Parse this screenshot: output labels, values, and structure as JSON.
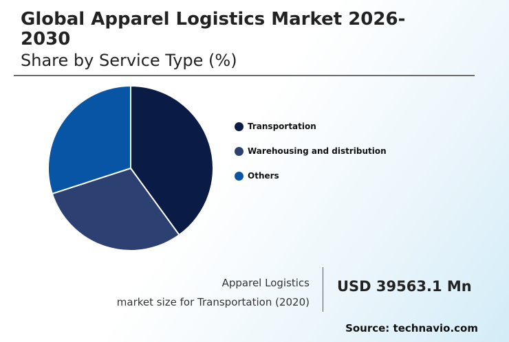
{
  "header": {
    "title": "Global Apparel Logistics Market 2026-2030",
    "subtitle": "Share by Service Type (%)"
  },
  "chart_data": {
    "type": "pie",
    "slices": [
      {
        "label": "Transportation",
        "value": 40,
        "color": "#0a1c45"
      },
      {
        "label": "Warehousing and distribution",
        "value": 30,
        "color": "#2c4172"
      },
      {
        "label": "Others",
        "value": 30,
        "color": "#0955a5"
      }
    ],
    "legend_position": "right"
  },
  "kpi": {
    "label_line1": "Apparel Logistics",
    "label_line2": "market size for Transportation (2020)",
    "value": "USD 39563.1 Mn"
  },
  "footer": {
    "source": "Source: technavio.com"
  }
}
